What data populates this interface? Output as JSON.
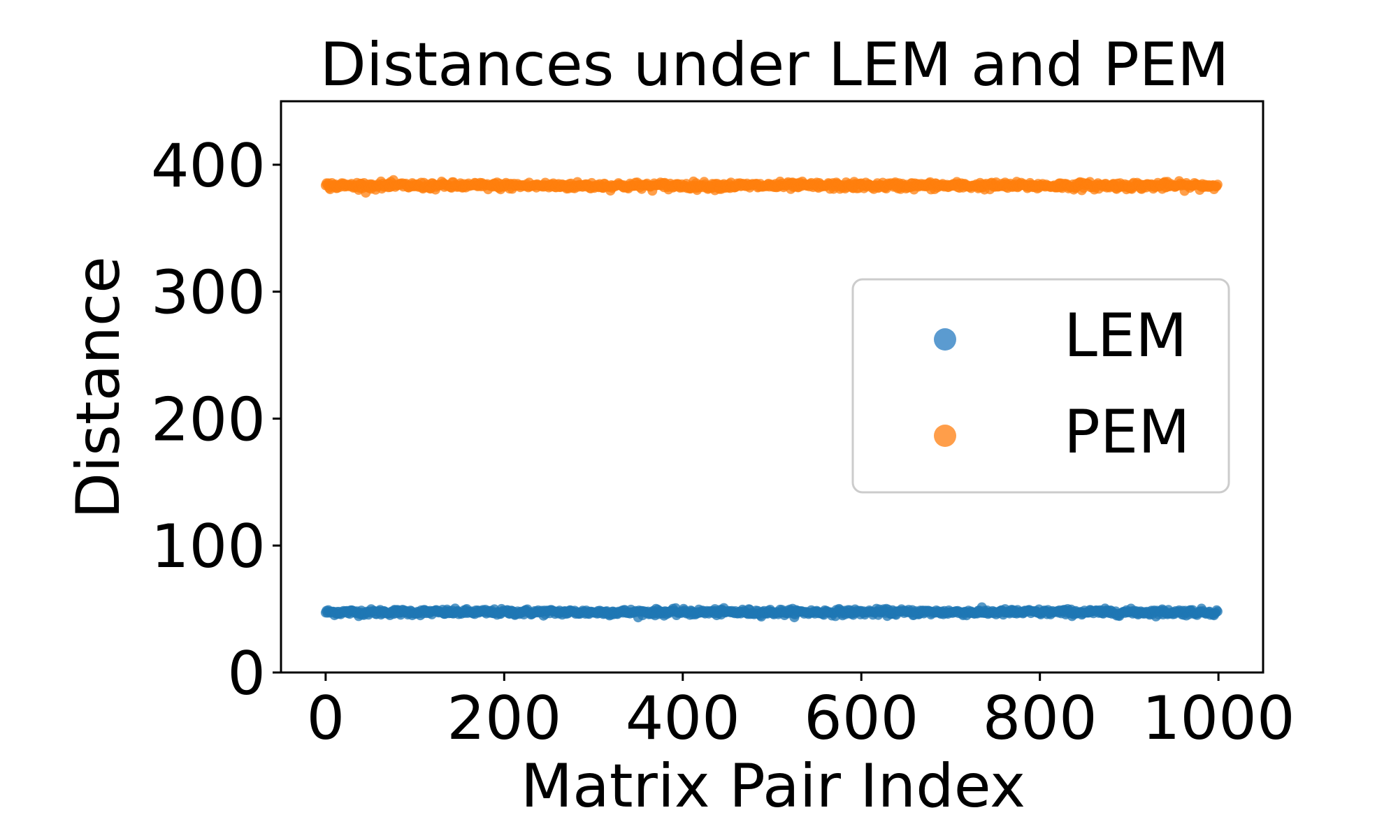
{
  "chart_data": {
    "type": "scatter",
    "title": "Distances under LEM and PEM",
    "xlabel": "Matrix Pair Index",
    "ylabel": "Distance",
    "xlim": [
      -50,
      1050
    ],
    "ylim": [
      0,
      450
    ],
    "xticks": [
      0,
      200,
      400,
      600,
      800,
      1000
    ],
    "yticks": [
      0,
      100,
      200,
      300,
      400
    ],
    "grid": false,
    "legend_position": "center-right",
    "n_points_per_series": 1000,
    "series": [
      {
        "name": "LEM",
        "color": "#1f77b4",
        "legend_color": "#5b9bd0",
        "mean": 47.5,
        "spread": 1.2,
        "x_range": [
          0,
          999
        ]
      },
      {
        "name": "PEM",
        "color": "#ff7f0e",
        "legend_color": "#ff9e4a",
        "mean": 383.5,
        "spread": 1.4,
        "x_range": [
          0,
          999
        ]
      }
    ]
  }
}
